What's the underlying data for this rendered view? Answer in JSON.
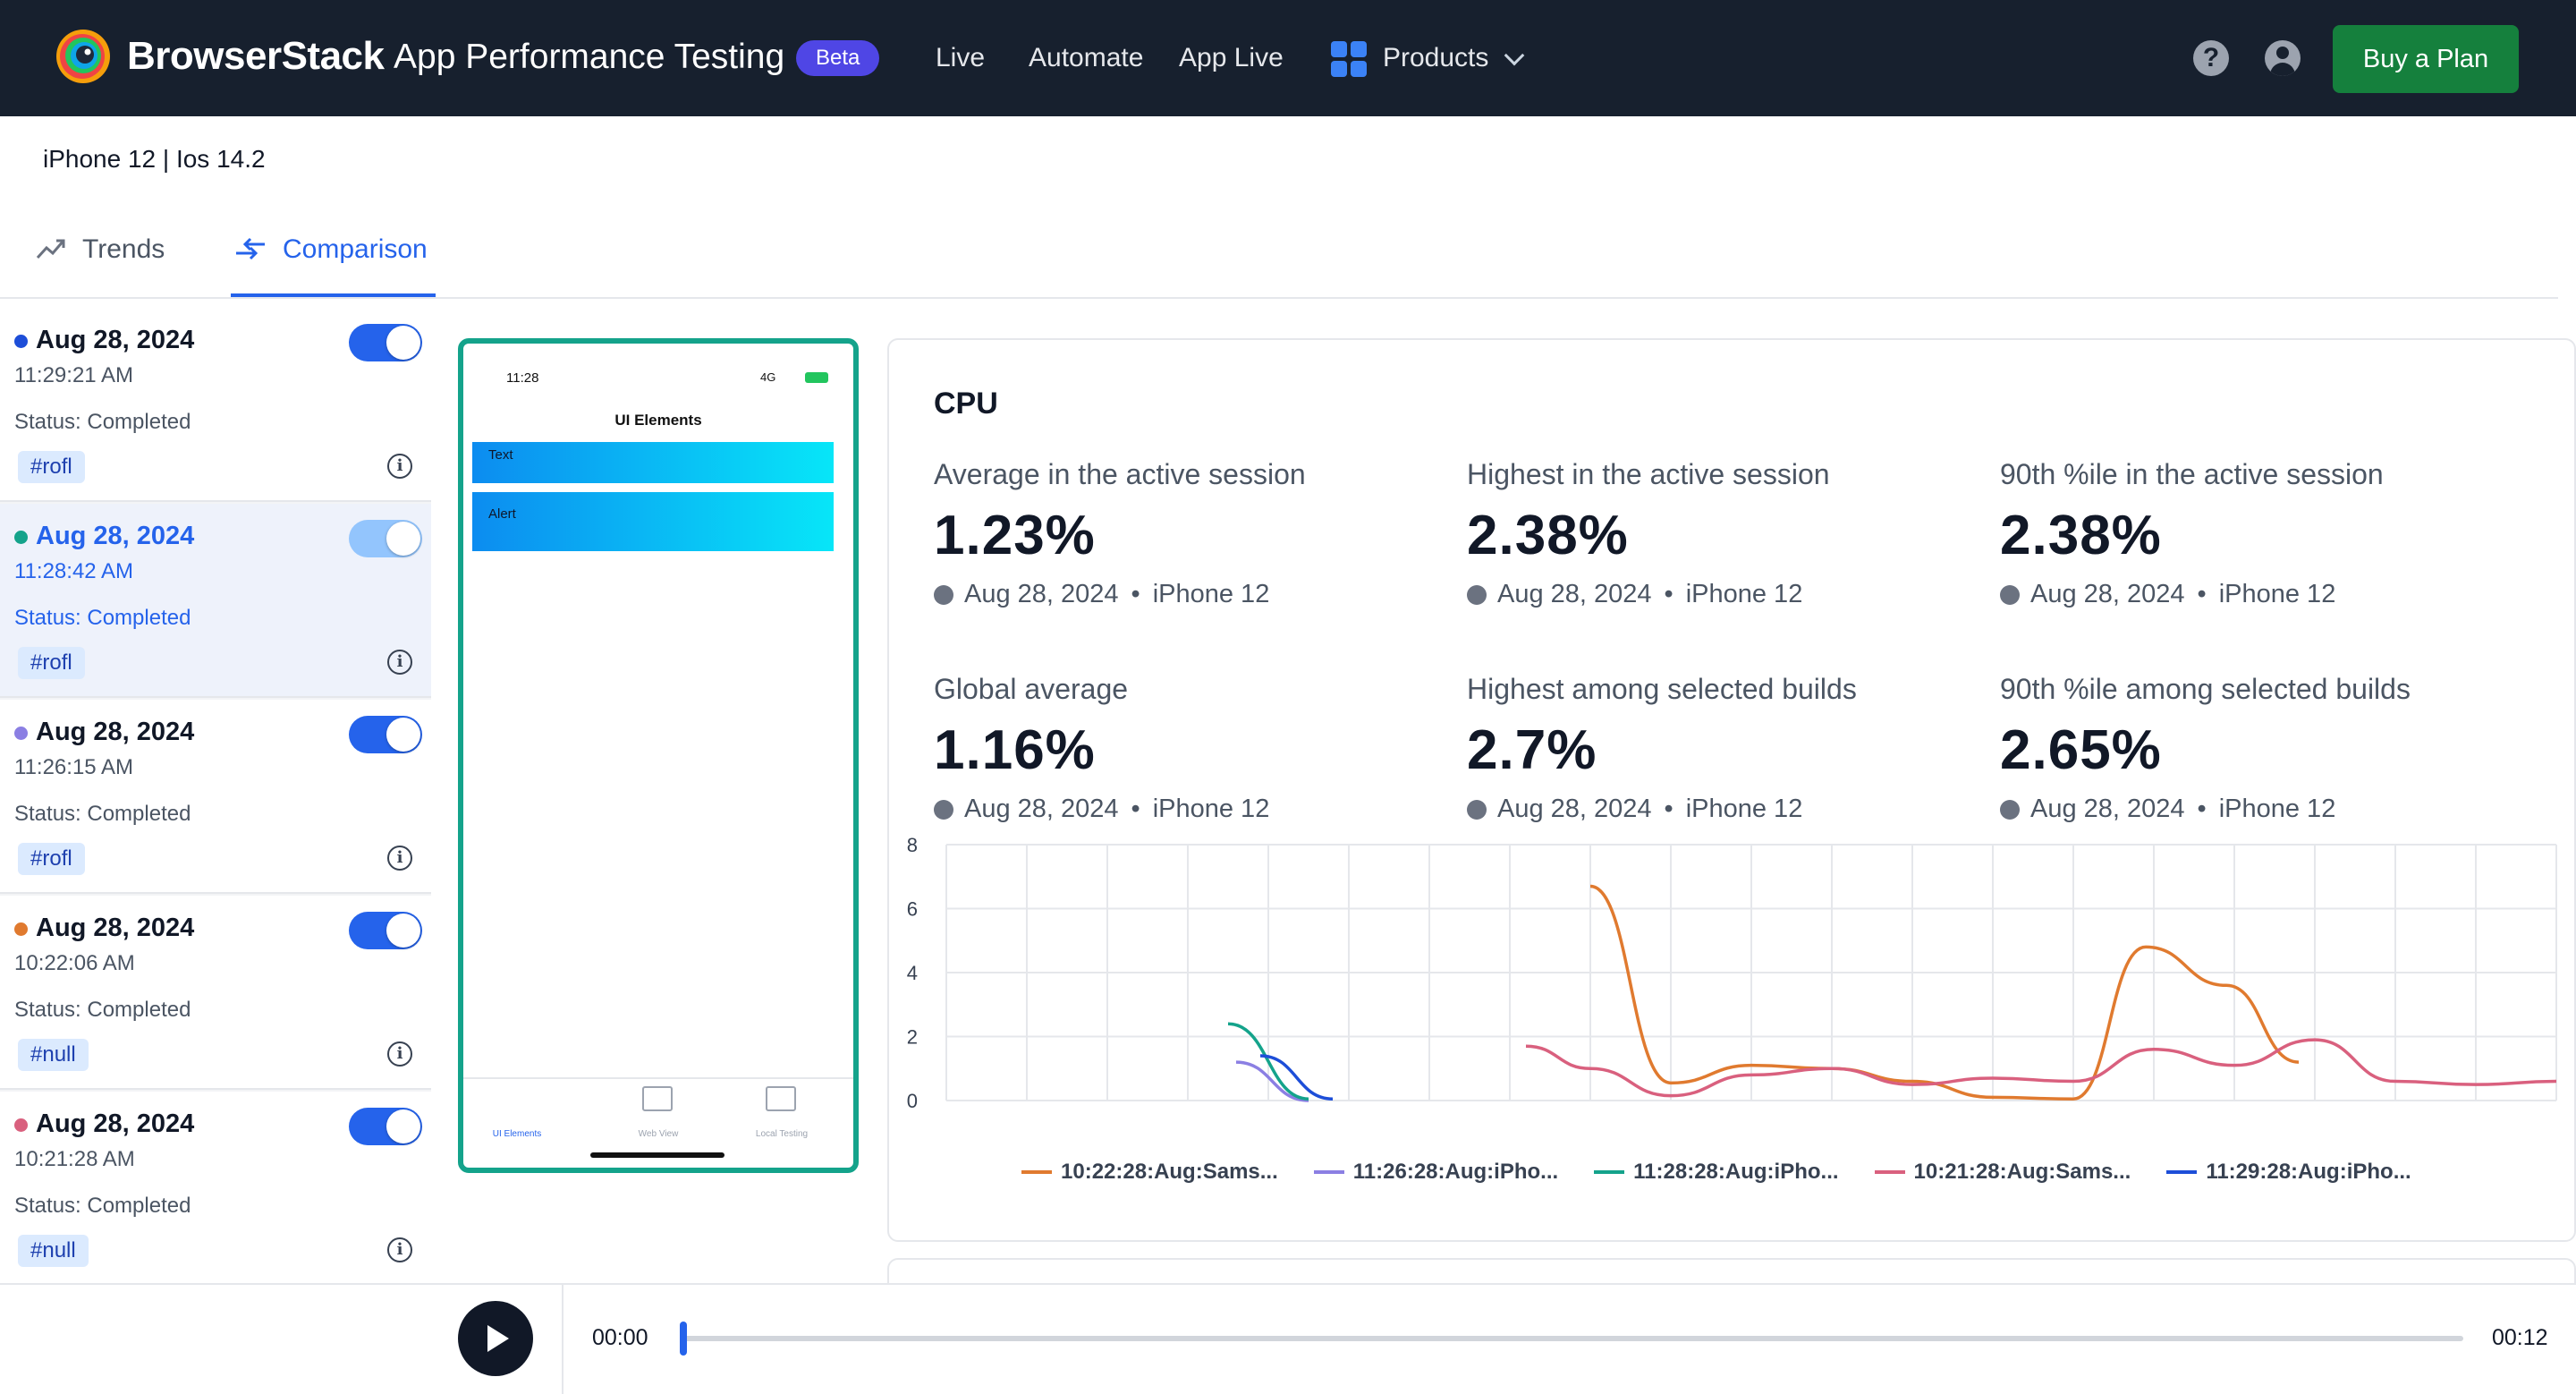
{
  "header": {
    "brand": "BrowserStack",
    "product": "App Performance Testing",
    "badge": "Beta",
    "nav": [
      "Live",
      "Automate",
      "App Live",
      "Products"
    ],
    "help_icon": "question-circle-icon",
    "account_icon": "user-circle-icon",
    "buy_label": "Buy a Plan",
    "accent": "#17202e",
    "buy_color": "#15803d"
  },
  "device": "iPhone 12 | Ios 14.2",
  "tabs": [
    {
      "label": "Trends",
      "icon": "trend-up-icon",
      "active": false
    },
    {
      "label": "Comparison",
      "icon": "compare-arrows-icon",
      "active": true
    }
  ],
  "sessions": [
    {
      "date": "Aug 28, 2024",
      "time": "11:29:21 AM",
      "status": "Status: Completed",
      "tag": "#rofl",
      "color": "#1d4ed8",
      "enabled": true,
      "selected": false
    },
    {
      "date": "Aug 28, 2024",
      "time": "11:28:42 AM",
      "status": "Status: Completed",
      "tag": "#rofl",
      "color": "#14a38b",
      "enabled": true,
      "selected": true
    },
    {
      "date": "Aug 28, 2024",
      "time": "11:26:15 AM",
      "status": "Status: Completed",
      "tag": "#rofl",
      "color": "#8b7fe3",
      "enabled": true,
      "selected": false
    },
    {
      "date": "Aug 28, 2024",
      "time": "10:22:06 AM",
      "status": "Status: Completed",
      "tag": "#null",
      "color": "#e07a2f",
      "enabled": true,
      "selected": false
    },
    {
      "date": "Aug 28, 2024",
      "time": "10:21:28 AM",
      "status": "Status: Completed",
      "tag": "#null",
      "color": "#d9607e",
      "enabled": true,
      "selected": false
    }
  ],
  "phone": {
    "clock": "11:28",
    "network": "4G",
    "title": "UI Elements",
    "rows": [
      "Text",
      "Alert"
    ],
    "tabs": [
      "UI Elements",
      "Web View",
      "Local Testing"
    ]
  },
  "cpu": {
    "title": "CPU",
    "stats": [
      {
        "label": "Average in the active session",
        "value": "1.23%",
        "date": "Aug 28, 2024",
        "device": "iPhone 12"
      },
      {
        "label": "Highest in the active session",
        "value": "2.38%",
        "date": "Aug 28, 2024",
        "device": "iPhone 12"
      },
      {
        "label": "90th %ile in the active session",
        "value": "2.38%",
        "date": "Aug 28, 2024",
        "device": "iPhone 12"
      },
      {
        "label": "Global average",
        "value": "1.16%",
        "date": "Aug 28, 2024",
        "device": "iPhone 12"
      },
      {
        "label": "Highest among selected builds",
        "value": "2.7%",
        "date": "Aug 28, 2024",
        "device": "iPhone 12"
      },
      {
        "label": "90th %ile among selected builds",
        "value": "2.65%",
        "date": "Aug 28, 2024",
        "device": "iPhone 12"
      }
    ]
  },
  "chart_data": {
    "type": "line",
    "ylim": [
      0,
      8
    ],
    "yticks": [
      "0",
      "2",
      "4",
      "6",
      "8"
    ],
    "xlim": [
      0,
      20
    ],
    "grid": true,
    "legend_position": "bottom",
    "series": [
      {
        "name": "10:22:28:Aug:Sams...",
        "color": "#e07a2f",
        "x": [
          8.0,
          9.0,
          10.0,
          11.0,
          12.0,
          13.0,
          14.0,
          14.9,
          15.9,
          16.8
        ],
        "y": [
          6.7,
          0.55,
          1.1,
          1.0,
          0.6,
          0.1,
          0.05,
          4.8,
          3.6,
          1.2
        ]
      },
      {
        "name": "11:26:28:Aug:iPho...",
        "color": "#8b7fe3",
        "x": [
          3.6,
          4.5
        ],
        "y": [
          1.2,
          0.0
        ]
      },
      {
        "name": "11:28:28:Aug:iPho...",
        "color": "#14a38b",
        "x": [
          3.5,
          4.5
        ],
        "y": [
          2.4,
          0.05
        ]
      },
      {
        "name": "10:21:28:Aug:Sams...",
        "color": "#d9607e",
        "x": [
          7.2,
          8.0,
          9.0,
          10.0,
          11.0,
          12.0,
          13.0,
          14.0,
          15.0,
          16.0,
          17.0,
          18.0,
          19.0,
          20.0
        ],
        "y": [
          1.7,
          1.0,
          0.15,
          0.8,
          1.0,
          0.5,
          0.7,
          0.6,
          1.6,
          1.1,
          1.9,
          0.6,
          0.5,
          0.6
        ]
      },
      {
        "name": "11:29:28:Aug:iPho...",
        "color": "#1d4ed8",
        "x": [
          3.9,
          4.8
        ],
        "y": [
          1.4,
          0.05
        ]
      }
    ]
  },
  "player": {
    "play_icon": "play-icon",
    "current": "00:00",
    "duration": "00:12",
    "progress": 0
  }
}
